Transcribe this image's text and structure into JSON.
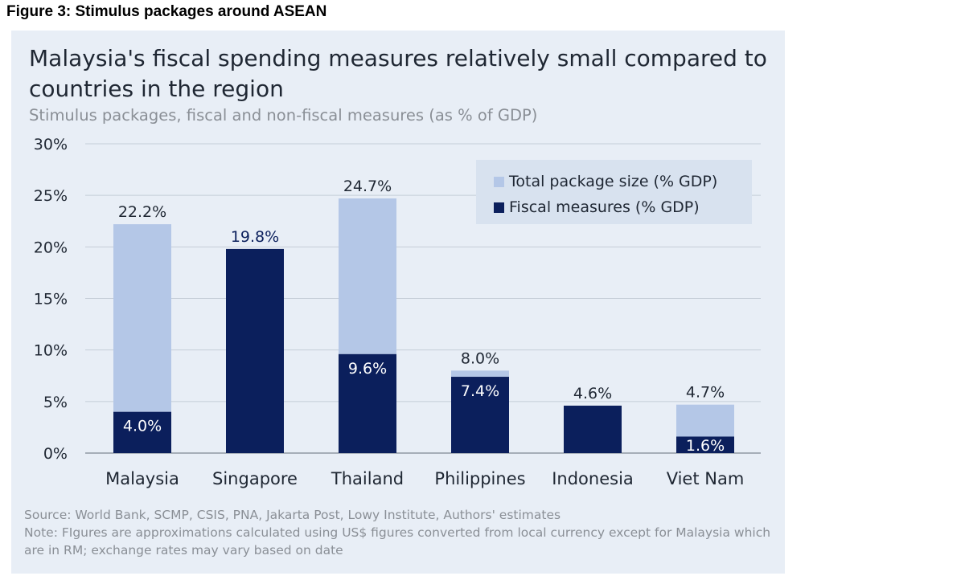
{
  "figure_label": "Figure 3: Stimulus packages around ASEAN",
  "chart_data": {
    "type": "bar",
    "title": "Malaysia's fiscal spending measures relatively small compared to countries in the region",
    "subtitle": "Stimulus packages, fiscal and non-fiscal measures (as % of GDP)",
    "categories": [
      "Malaysia",
      "Singapore",
      "Thailand",
      "Philippines",
      "Indonesia",
      "Viet Nam"
    ],
    "series": [
      {
        "name": "Total package size (% GDP)",
        "color": "#b4c7e7",
        "values": [
          22.2,
          19.8,
          24.7,
          8.0,
          4.6,
          4.7
        ]
      },
      {
        "name": "Fiscal measures (% GDP)",
        "color": "#0b1f5c",
        "values": [
          4.0,
          19.8,
          9.6,
          7.4,
          4.6,
          1.6
        ]
      }
    ],
    "total_labels": [
      "22.2%",
      "19.8%",
      "24.7%",
      "8.0%",
      "4.6%",
      "4.7%"
    ],
    "fiscal_labels": [
      "4.0%",
      "",
      "9.6%",
      "7.4%",
      "",
      "1.6%"
    ],
    "yticks": [
      "0%",
      "5%",
      "10%",
      "15%",
      "20%",
      "25%",
      "30%"
    ],
    "ylim": [
      0,
      30
    ],
    "legend_position": "top-right",
    "grid": true
  },
  "source_line": "Source: World Bank, SCMP, CSIS, PNA, Jakarta Post, Lowy Institute, Authors' estimates",
  "note_line": "Note: FIgures are approximations calculated using US$ figures converted from local currency except for Malaysia which are in RM; exchange rates may vary based on date"
}
